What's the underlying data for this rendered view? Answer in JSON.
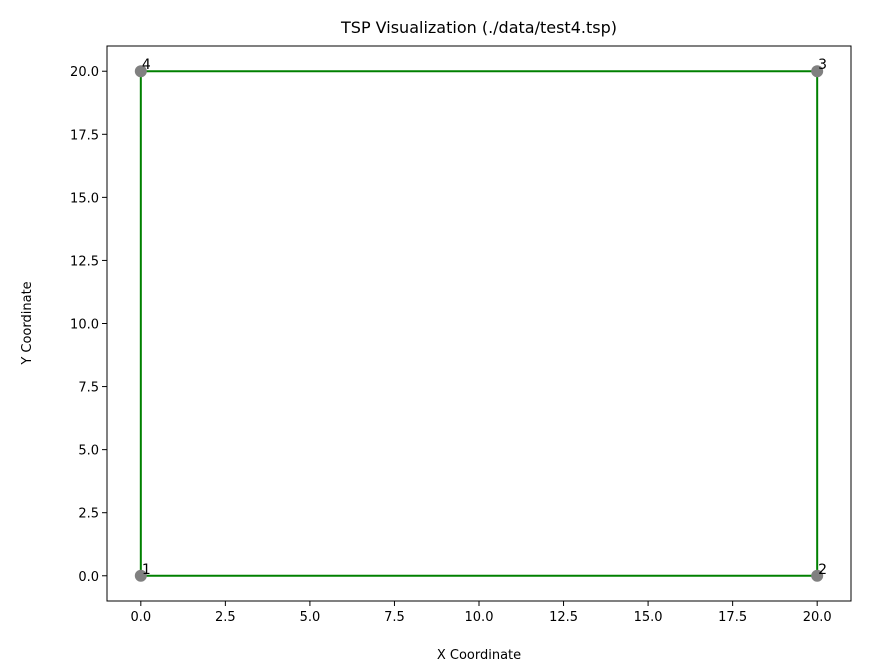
{
  "chart_data": {
    "type": "scatter",
    "title": "TSP Visualization (./data/test4.tsp)",
    "xlabel": "X Coordinate",
    "ylabel": "Y Coordinate",
    "points": {
      "x": [
        0,
        20,
        20,
        0
      ],
      "y": [
        0,
        0,
        20,
        20
      ],
      "labels": [
        "1",
        "2",
        "3",
        "4"
      ],
      "color": "#808080"
    },
    "route": {
      "x": [
        0,
        20,
        20,
        0,
        0
      ],
      "y": [
        0,
        0,
        20,
        20,
        0
      ],
      "color": "#008000"
    },
    "xlim": [
      -1,
      21
    ],
    "ylim": [
      -1,
      21
    ],
    "xticks": [
      {
        "value": 0,
        "label": "0.0"
      },
      {
        "value": 2.5,
        "label": "2.5"
      },
      {
        "value": 5,
        "label": "5.0"
      },
      {
        "value": 7.5,
        "label": "7.5"
      },
      {
        "value": 10,
        "label": "10.0"
      },
      {
        "value": 12.5,
        "label": "12.5"
      },
      {
        "value": 15,
        "label": "15.0"
      },
      {
        "value": 17.5,
        "label": "17.5"
      },
      {
        "value": 20,
        "label": "20.0"
      }
    ],
    "yticks": [
      {
        "value": 0,
        "label": "0.0"
      },
      {
        "value": 2.5,
        "label": "2.5"
      },
      {
        "value": 5,
        "label": "5.0"
      },
      {
        "value": 7.5,
        "label": "7.5"
      },
      {
        "value": 10,
        "label": "10.0"
      },
      {
        "value": 12.5,
        "label": "12.5"
      },
      {
        "value": 15,
        "label": "15.0"
      },
      {
        "value": 17.5,
        "label": "17.5"
      },
      {
        "value": 20,
        "label": "20.0"
      }
    ]
  }
}
